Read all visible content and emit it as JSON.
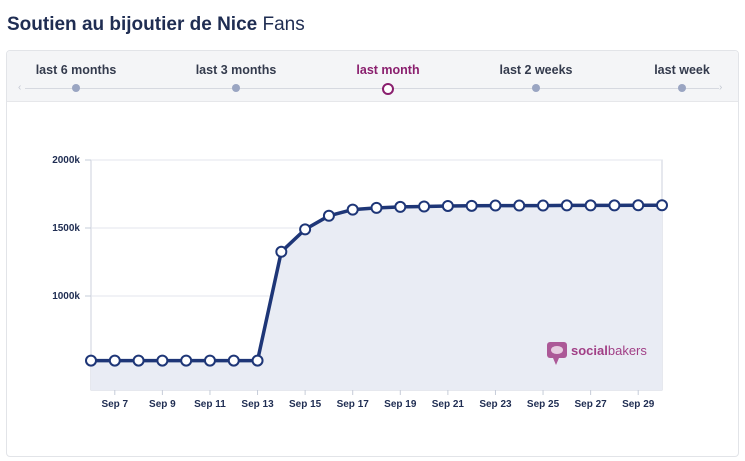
{
  "header": {
    "title_bold": "Soutien au bijoutier de Nice",
    "title_rest": "Fans"
  },
  "tabs": [
    {
      "label": "last 6 months",
      "active": false
    },
    {
      "label": "last 3 months",
      "active": false
    },
    {
      "label": "last month",
      "active": true
    },
    {
      "label": "last 2 weeks",
      "active": false
    },
    {
      "label": "last week",
      "active": false
    }
  ],
  "watermark": {
    "brand": "socialbakers",
    "prefix": "social",
    "suffix": "bakers"
  },
  "colors": {
    "line": "#1e3677",
    "fill": "#e9ecf4",
    "accent": "#8a1f6e",
    "watermark": "#a13f86"
  },
  "chart_data": {
    "type": "area",
    "y_ticks": [
      "2000k",
      "1500k",
      "1000k"
    ],
    "ylim": [
      500,
      2000
    ],
    "x_ticks": [
      "Sep 7",
      "Sep 9",
      "Sep 11",
      "Sep 13",
      "Sep 15",
      "Sep 17",
      "Sep 19",
      "Sep 21",
      "Sep 23",
      "Sep 25",
      "Sep 27",
      "Sep 29"
    ],
    "x_tick_days": [
      7,
      9,
      11,
      13,
      15,
      17,
      19,
      21,
      23,
      25,
      27,
      29
    ],
    "x_range": [
      6,
      30
    ],
    "days": [
      6,
      7,
      8,
      9,
      10,
      11,
      12,
      13,
      14,
      15,
      16,
      17,
      18,
      19,
      20,
      21,
      22,
      23,
      24,
      25,
      26,
      27,
      28,
      29,
      30
    ],
    "values": [
      525,
      525,
      525,
      525,
      525,
      525,
      525,
      525,
      1325,
      1490,
      1590,
      1635,
      1648,
      1655,
      1658,
      1662,
      1663,
      1665,
      1665,
      1665,
      1666,
      1666,
      1666,
      1667,
      1667
    ],
    "grid": true
  }
}
